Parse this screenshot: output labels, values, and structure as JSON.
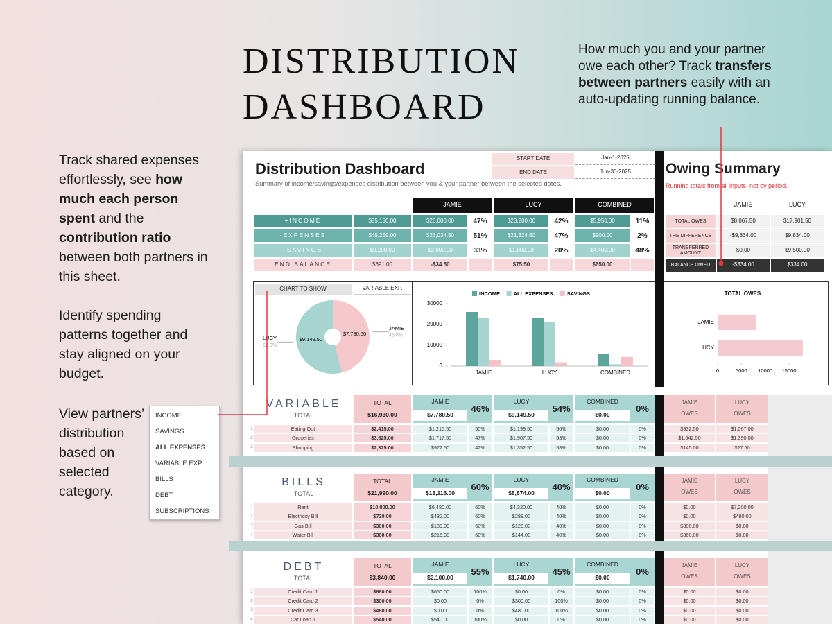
{
  "promo": {
    "title": [
      "DISTRIBUTION",
      "DASHBOARD"
    ],
    "owe_note": [
      {
        "text": "How much you and your partner owe each other? Track "
      },
      {
        "text": "transfers between partners",
        "bold": true
      },
      {
        "text": " easily with an auto-updating running balance."
      }
    ],
    "track_note": [
      {
        "text": "Track shared expenses effortlessly, see "
      },
      {
        "text": "how much each person spent",
        "bold": true
      },
      {
        "text": " and the "
      },
      {
        "text": "contribution ratio",
        "bold": true
      },
      {
        "text": " between both partners in this sheet."
      }
    ],
    "pattern_note": [
      {
        "text": "Identify spending patterns together and stay aligned on your budget."
      }
    ],
    "view_note": [
      {
        "text": "View partners’ distribution based on selected category."
      }
    ]
  },
  "dropdown": [
    "INCOME",
    "SAVINGS",
    "ALL EXPENSES",
    "VARIABLE EXP.",
    "BILLS",
    "DEBT",
    "SUBSCRIPTIONS"
  ],
  "sheet": {
    "title": "Distribution Dashboard",
    "subtitle": "Summary of income/savings/expenses distribution between you & your partner between the selected dates.",
    "dates": [
      {
        "label": "START DATE",
        "value": "Jan-1-2025"
      },
      {
        "label": "END DATE",
        "value": "Jun-30-2025"
      }
    ],
    "summary": {
      "headers": [
        "JAMIE",
        "LUCY",
        "COMBINED"
      ],
      "rows": [
        {
          "label": "+INCOME",
          "total": "$55,150.00",
          "groups": [
            [
              "$26,000.00",
              "47%"
            ],
            [
              "$23,200.00",
              "42%"
            ],
            [
              "$5,950.00",
              "11%"
            ]
          ]
        },
        {
          "label": "-EXPENSES",
          "total": "$45,259.00",
          "groups": [
            [
              "$23,034.50",
              "51%"
            ],
            [
              "$21,324.50",
              "47%"
            ],
            [
              "$900.00",
              "2%"
            ]
          ]
        },
        {
          "label": "-SAVINGS",
          "total": "$9,200.00",
          "groups": [
            [
              "$3,000.00",
              "33%"
            ],
            [
              "$1,800.00",
              "20%"
            ],
            [
              "$4,400.00",
              "48%"
            ]
          ]
        },
        {
          "label": "END BALANCE",
          "total": "$691.00",
          "groups": [
            [
              "-$34.50"
            ],
            [
              "$75.50"
            ],
            [
              "$650.00"
            ]
          ]
        }
      ]
    },
    "owing": {
      "title": "Owing Summary",
      "note": "Running totals from all inputs, not by period.",
      "headers": [
        "JAMIE",
        "LUCY"
      ],
      "rows": [
        {
          "label": "TOTAL OWES",
          "values": [
            "$8,067.50",
            "$17,901.50"
          ]
        },
        {
          "label": "THE DIFFERENCE",
          "values": [
            "-$9,834.00",
            "$9,834.00"
          ]
        },
        {
          "label": "TRANSFERRED AMOUNT",
          "values": [
            "$0.00",
            "$9,500.00"
          ]
        },
        {
          "label": "BALANCE OWED",
          "values": [
            "-$334.00",
            "$334.00"
          ]
        }
      ]
    },
    "pie": {
      "type": "pie",
      "selector_label": "CHART TO SHOW:",
      "selected": "VARIABLE EXP.",
      "categories": [
        "JAMIE",
        "LUCY"
      ],
      "values": [
        7780.5,
        9149.5
      ],
      "value_labels": [
        "$7,780.50",
        "$9,149.50"
      ],
      "percent_labels": [
        "46.0%",
        "54.0%"
      ],
      "colors": [
        "#f5c8cc",
        "#a6d4d0"
      ]
    },
    "bar": {
      "type": "bar",
      "categories": [
        "JAMIE",
        "LUCY",
        "COMBINED"
      ],
      "series": [
        {
          "name": "INCOME",
          "color": "#5ca59d",
          "values": [
            26000,
            23200,
            5950
          ]
        },
        {
          "name": "ALL EXPENSES",
          "color": "#a6d4d0",
          "values": [
            23034.5,
            21324.5,
            900
          ]
        },
        {
          "name": "SAVINGS",
          "color": "#f5c3c7",
          "values": [
            3000,
            1800,
            4400
          ]
        }
      ],
      "ylim": [
        0,
        30000
      ],
      "yticks": [
        0,
        10000,
        20000,
        30000
      ]
    },
    "hbar": {
      "type": "hbar",
      "title": "TOTAL OWES",
      "categories": [
        "JAMIE",
        "LUCY"
      ],
      "values": [
        8067.5,
        17901.5
      ],
      "color": "#f6cbcf",
      "xlim": [
        0,
        18000
      ],
      "xticks": [
        0,
        5000,
        10000,
        15000
      ]
    },
    "section_columns": {
      "total_label": "TOTAL",
      "names": [
        "JAMIE",
        "LUCY",
        "COMBINED"
      ],
      "owes": [
        [
          "JAMIE",
          "OWES"
        ],
        [
          "LUCY",
          "OWES"
        ]
      ]
    },
    "sections": [
      {
        "name": "VARIABLE",
        "total": "$16,930.00",
        "groups": [
          [
            "$7,780.50",
            "46%"
          ],
          [
            "$9,149.50",
            "54%"
          ],
          [
            "$0.00",
            "0%"
          ]
        ],
        "rows": [
          [
            "1",
            "Eating Out",
            "$2,415.00",
            "$1,215.50",
            "50%",
            "$1,199.50",
            "50%",
            "$0.00",
            "0%",
            "$932.50",
            "$1,067.00"
          ],
          [
            "2",
            "Groceries",
            "$3,625.00",
            "$1,717.50",
            "47%",
            "$1,907.50",
            "53%",
            "$0.00",
            "0%",
            "$1,542.50",
            "$1,390.00"
          ],
          [
            "3",
            "Shopping",
            "$2,325.00",
            "$972.50",
            "42%",
            "$1,352.50",
            "58%",
            "$0.00",
            "0%",
            "$145.00",
            "$27.50"
          ]
        ]
      },
      {
        "name": "BILLS",
        "total": "$21,990.00",
        "groups": [
          [
            "$13,116.00",
            "60%"
          ],
          [
            "$8,874.00",
            "40%"
          ],
          [
            "$0.00",
            "0%"
          ]
        ],
        "rows": [
          [
            "1",
            "Rent",
            "$10,800.00",
            "$6,480.00",
            "60%",
            "$4,320.00",
            "40%",
            "$0.00",
            "0%",
            "$0.00",
            "$7,200.00"
          ],
          [
            "2",
            "Electricity Bill",
            "$720.00",
            "$432.00",
            "60%",
            "$288.00",
            "40%",
            "$0.00",
            "0%",
            "$0.00",
            "$480.00"
          ],
          [
            "3",
            "Gas Bill",
            "$300.00",
            "$180.00",
            "60%",
            "$120.00",
            "40%",
            "$0.00",
            "0%",
            "$300.00",
            "$0.00"
          ],
          [
            "4",
            "Water Bill",
            "$360.00",
            "$216.00",
            "60%",
            "$144.00",
            "40%",
            "$0.00",
            "0%",
            "$360.00",
            "$0.00"
          ]
        ]
      },
      {
        "name": "DEBT",
        "total": "$3,840.00",
        "groups": [
          [
            "$2,100.00",
            "55%"
          ],
          [
            "$1,740.00",
            "45%"
          ],
          [
            "$0.00",
            "0%"
          ]
        ],
        "rows": [
          [
            "1",
            "Credit Card 1",
            "$660.00",
            "$660.00",
            "100%",
            "$0.00",
            "0%",
            "$0.00",
            "0%",
            "$0.00",
            "$0.00"
          ],
          [
            "2",
            "Credit Card 2",
            "$300.00",
            "$0.00",
            "0%",
            "$300.00",
            "100%",
            "$0.00",
            "0%",
            "$0.00",
            "$0.00"
          ],
          [
            "3",
            "Credit Card 3",
            "$480.00",
            "$0.00",
            "0%",
            "$480.00",
            "100%",
            "$0.00",
            "0%",
            "$0.00",
            "$0.00"
          ],
          [
            "4",
            "Car Loan 1",
            "$540.00",
            "$540.00",
            "100%",
            "$0.00",
            "0%",
            "$0.00",
            "0%",
            "$0.00",
            "$0.00"
          ]
        ]
      }
    ]
  }
}
